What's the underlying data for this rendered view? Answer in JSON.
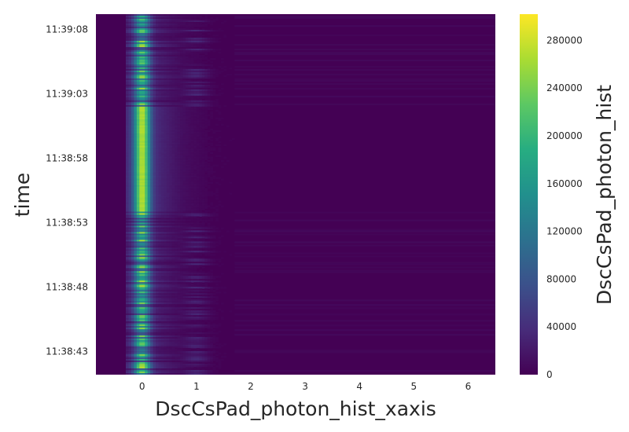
{
  "chart_data": {
    "type": "heatmap",
    "title": "",
    "xlabel": "DscCsPad_photon_hist_xaxis",
    "ylabel": "time",
    "colorbar_label": "DscCsPad_photon_hist",
    "colormap": "viridis",
    "xlim": [
      -0.85,
      6.5
    ],
    "x_ticks": [
      0,
      1,
      2,
      3,
      4,
      5,
      6
    ],
    "y_range": [
      "11:38:41.2",
      "11:39:09.2"
    ],
    "y_ticks": [
      "11:38:43",
      "11:38:48",
      "11:38:53",
      "11:38:58",
      "11:39:03",
      "11:39:08"
    ],
    "colorbar_range": [
      0,
      302000
    ],
    "colorbar_ticks": [
      0,
      40000,
      80000,
      120000,
      160000,
      200000,
      240000,
      280000
    ],
    "x_bins": [
      -0.2,
      -0.1,
      0,
      0.1,
      0.2,
      0.9,
      1.0,
      1.1,
      1.2
    ],
    "profile_peak_at_0": [
      60000,
      200000,
      280000,
      200000,
      60000,
      0,
      0,
      0,
      0
    ],
    "profile_secondary_at_1": [
      0,
      0,
      0,
      0,
      0,
      12000,
      30000,
      20000,
      6000
    ],
    "stable_period": [
      "11:38:54",
      "11:39:02"
    ]
  }
}
